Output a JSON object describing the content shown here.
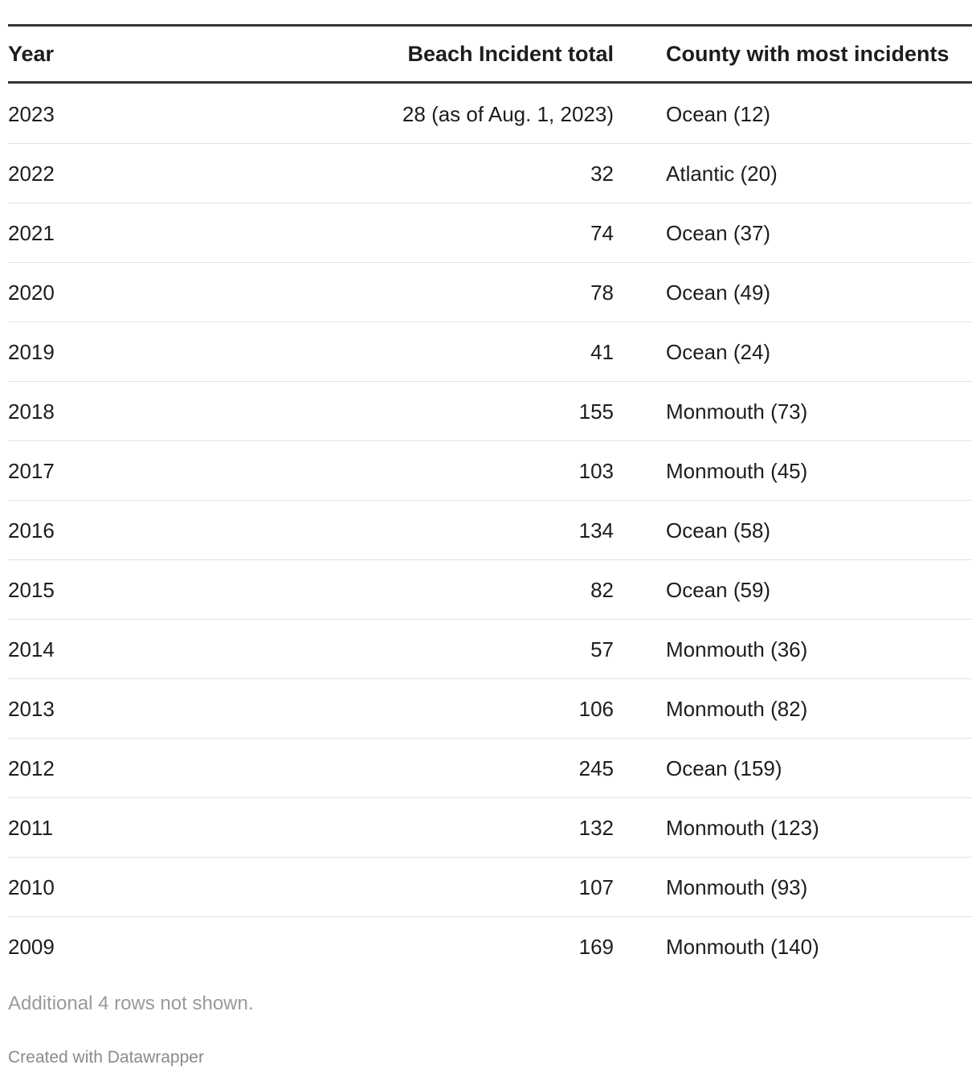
{
  "table": {
    "header": [
      "Year",
      "Beach Incident total",
      "County with most incidents"
    ],
    "rows": [
      [
        "2023",
        "28 (as of Aug. 1, 2023)",
        "Ocean (12)"
      ],
      [
        "2022",
        "32",
        "Atlantic (20)"
      ],
      [
        "2021",
        "74",
        "Ocean (37)"
      ],
      [
        "2020",
        "78",
        "Ocean (49)"
      ],
      [
        "2019",
        "41",
        "Ocean (24)"
      ],
      [
        "2018",
        "155",
        "Monmouth (73)"
      ],
      [
        "2017",
        "103",
        "Monmouth (45)"
      ],
      [
        "2016",
        "134",
        "Ocean (58)"
      ],
      [
        "2015",
        "82",
        "Ocean (59)"
      ],
      [
        "2014",
        "57",
        "Monmouth (36)"
      ],
      [
        "2013",
        "106",
        "Monmouth (82)"
      ],
      [
        "2012",
        "245",
        "Ocean (159)"
      ],
      [
        "2011",
        "132",
        "Monmouth (123)"
      ],
      [
        "2010",
        "107",
        "Monmouth (93)"
      ],
      [
        "2009",
        "169",
        "Monmouth (140)"
      ]
    ]
  },
  "notes": "Additional 4 rows not shown.",
  "credit": "Created with Datawrapper"
}
